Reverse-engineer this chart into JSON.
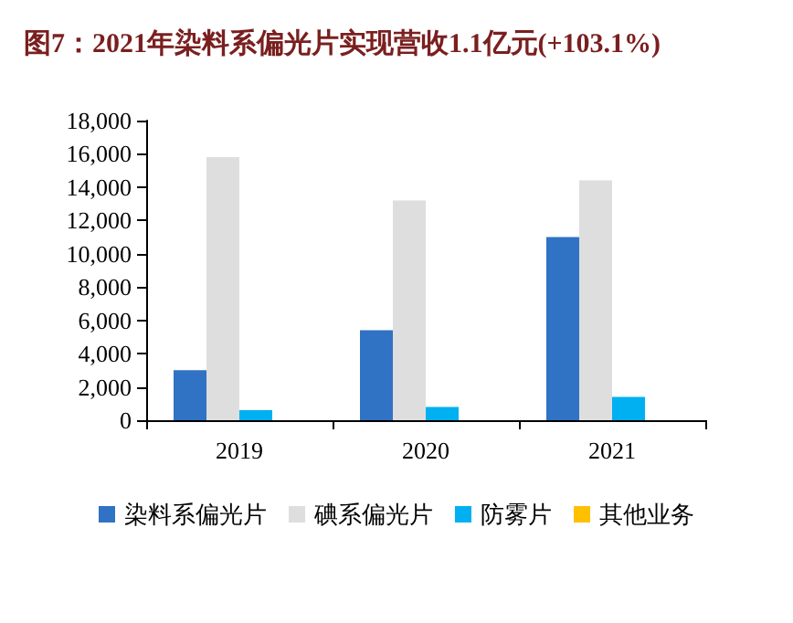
{
  "chart_data": {
    "type": "bar",
    "title": "图7：2021年染料系偏光片实现营收1.1亿元(+103.1%)",
    "categories": [
      "2019",
      "2020",
      "2021"
    ],
    "series": [
      {
        "name": "染料系偏光片",
        "color": "#3072c4",
        "values": [
          3000,
          5400,
          11000
        ]
      },
      {
        "name": "碘系偏光片",
        "color": "#dedede",
        "values": [
          15800,
          13200,
          14400
        ]
      },
      {
        "name": "防雾片",
        "color": "#00b0f0",
        "values": [
          600,
          800,
          1400
        ]
      },
      {
        "name": "其他业务",
        "color": "#ffc000",
        "values": [
          0,
          0,
          0
        ]
      }
    ],
    "ylim": [
      0,
      18000
    ],
    "yticks": [
      0,
      {
        "value": 2000,
        "label": "2,000"
      },
      {
        "value": 4000,
        "label": "4,000"
      },
      {
        "value": 6000,
        "label": "6,000"
      },
      {
        "value": 8000,
        "label": "8,000"
      },
      {
        "value": 10000,
        "label": "10,000"
      },
      {
        "value": 12000,
        "label": "12,000"
      },
      {
        "value": 14000,
        "label": "14,000"
      },
      {
        "value": 16000,
        "label": "16,000"
      },
      {
        "value": 18000,
        "label": "18,000"
      }
    ],
    "grid": false,
    "legend": "bottom"
  }
}
